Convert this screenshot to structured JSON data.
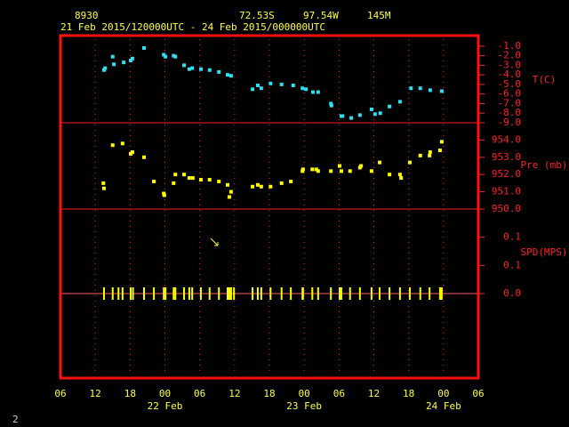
{
  "header": {
    "station": "8930",
    "latitude": "72.53S",
    "longitude": "97.54W",
    "elevation": "145M",
    "period": "21 Feb 2015/120000UTC - 24 Feb 2015/000000UTC"
  },
  "page_number": "2",
  "x_axis": {
    "xlim": [
      6,
      78
    ],
    "xticks": [
      {
        "value": 6,
        "label": "06"
      },
      12,
      18,
      {
        "value": 24,
        "label": "00"
      },
      {
        "value": 30,
        "label": "06"
      },
      {
        "value": 36,
        "label": "12"
      },
      {
        "value": 42,
        "label": "18"
      },
      {
        "value": 48,
        "label": "00"
      },
      {
        "value": 54,
        "label": "06"
      },
      {
        "value": 60,
        "label": "12"
      },
      {
        "value": 66,
        "label": "18"
      },
      {
        "value": 72,
        "label": "00"
      },
      {
        "value": 78,
        "label": "06"
      }
    ],
    "date_ticks": [
      {
        "value": 24,
        "label": "22 Feb"
      },
      {
        "value": 48,
        "label": "23 Feb"
      },
      {
        "value": 72,
        "label": "24 Feb"
      }
    ]
  },
  "chart_data": [
    {
      "type": "scatter",
      "axis_label": "T(C)",
      "color": "#30e0f0",
      "ylim": [
        -9,
        0.1
      ],
      "yticks": [
        {
          "value": -1,
          "label": "-1.0"
        },
        {
          "value": -2,
          "label": "-2.0"
        },
        {
          "value": -3,
          "label": "-3.0"
        },
        {
          "value": -4,
          "label": "-4.0"
        },
        {
          "value": -5,
          "label": "-5.0"
        },
        {
          "value": -6,
          "label": "-6.0"
        },
        {
          "value": -7,
          "label": "-7.0"
        },
        {
          "value": -8,
          "label": "-8.0"
        },
        {
          "value": -9,
          "label": "-9.0"
        }
      ],
      "x": [
        13.5,
        13.7,
        15.0,
        15.2,
        16.9,
        18.1,
        18.4,
        20.4,
        23.8,
        24.1,
        25.5,
        25.8,
        27.3,
        28.2,
        28.7,
        30.2,
        31.7,
        33.3,
        34.8,
        35.4,
        39.1,
        40.0,
        40.6,
        42.2,
        44.1,
        46.1,
        47.7,
        48.3,
        49.5,
        50.4,
        52.6,
        52.7,
        54.4,
        54.6,
        56.1,
        57.6,
        59.6,
        60.2,
        61.1,
        62.7,
        64.5,
        66.4,
        68.0,
        69.7,
        71.7
      ],
      "values": [
        -3.5,
        -3.3,
        -2.1,
        -2.9,
        -2.7,
        -2.5,
        -2.3,
        -1.2,
        -1.9,
        -2.1,
        -2.0,
        -2.1,
        -3.0,
        -3.4,
        -3.3,
        -3.4,
        -3.5,
        -3.7,
        -4.0,
        -4.1,
        -5.5,
        -5.1,
        -5.4,
        -4.9,
        -5.0,
        -5.1,
        -5.4,
        -5.5,
        -5.8,
        -5.8,
        -7.0,
        -7.2,
        -8.3,
        -8.3,
        -8.5,
        -8.2,
        -7.6,
        -8.1,
        -8.0,
        -7.3,
        -6.8,
        -5.4,
        -5.4,
        -5.6,
        -5.7
      ]
    },
    {
      "type": "scatter",
      "axis_label": "Pre (mb)",
      "color": "#ffff00",
      "ylim": [
        950,
        955
      ],
      "yticks": [
        {
          "value": 954,
          "label": "954.0"
        },
        {
          "value": 953,
          "label": "953.0"
        },
        {
          "value": 952,
          "label": "952.0"
        },
        {
          "value": 951,
          "label": "951.0"
        },
        {
          "value": 950,
          "label": "950.0"
        }
      ],
      "x": [
        13.4,
        13.5,
        15.0,
        16.7,
        18.1,
        18.4,
        20.4,
        22.1,
        23.8,
        23.9,
        25.5,
        25.8,
        27.3,
        28.2,
        28.8,
        30.2,
        31.7,
        33.3,
        34.8,
        35.1,
        35.4,
        39.1,
        40.0,
        40.6,
        42.2,
        44.1,
        45.7,
        47.7,
        47.8,
        49.4,
        50.1,
        50.4,
        52.6,
        54.1,
        54.4,
        55.9,
        57.6,
        57.8,
        59.6,
        61.0,
        62.7,
        64.5,
        64.7,
        66.2,
        68.0,
        69.6,
        69.7,
        71.4,
        71.7
      ],
      "values": [
        951.5,
        951.2,
        953.7,
        953.8,
        953.2,
        953.3,
        953.0,
        951.6,
        950.9,
        950.8,
        951.5,
        952.0,
        952.0,
        951.8,
        951.8,
        951.7,
        951.7,
        951.6,
        951.4,
        950.7,
        951.0,
        951.3,
        951.4,
        951.3,
        951.3,
        951.5,
        951.6,
        952.2,
        952.3,
        952.3,
        952.3,
        952.2,
        952.2,
        952.5,
        952.2,
        952.2,
        952.4,
        952.5,
        952.2,
        952.7,
        952.0,
        952.0,
        951.8,
        952.7,
        953.1,
        953.1,
        953.3,
        953.4,
        953.9
      ]
    },
    {
      "type": "rug",
      "axis_label": "SPD(MPS)",
      "color": "#ffff00",
      "ylim": [
        -0.15,
        0.15
      ],
      "yticks": [
        {
          "value": 0.1,
          "label": "0.1"
        },
        {
          "value": 0.05,
          "label": "0.1"
        },
        {
          "value": 0,
          "label": "0.0"
        }
      ],
      "x": [
        13.5,
        15.0,
        16.0,
        16.7,
        18.1,
        18.5,
        20.4,
        22.1,
        23.8,
        24.1,
        25.5,
        25.8,
        27.3,
        28.2,
        28.7,
        30.2,
        31.7,
        33.3,
        34.8,
        35.1,
        35.4,
        35.9,
        39.1,
        40.0,
        40.6,
        42.2,
        44.1,
        45.7,
        47.7,
        47.8,
        49.4,
        50.4,
        52.6,
        54.1,
        54.4,
        55.9,
        57.6,
        59.6,
        61.0,
        62.7,
        64.5,
        66.2,
        68.0,
        69.6,
        71.4,
        71.7
      ],
      "values": [
        0,
        0,
        0,
        0,
        0,
        0,
        0,
        0,
        0,
        0,
        0,
        0,
        0,
        0,
        0,
        0,
        0,
        0,
        0,
        0,
        0,
        0,
        0,
        0,
        0,
        0,
        0,
        0,
        0,
        0,
        0,
        0,
        0,
        0,
        0,
        0,
        0,
        0,
        0,
        0,
        0,
        0,
        0,
        0,
        0,
        0
      ]
    }
  ]
}
